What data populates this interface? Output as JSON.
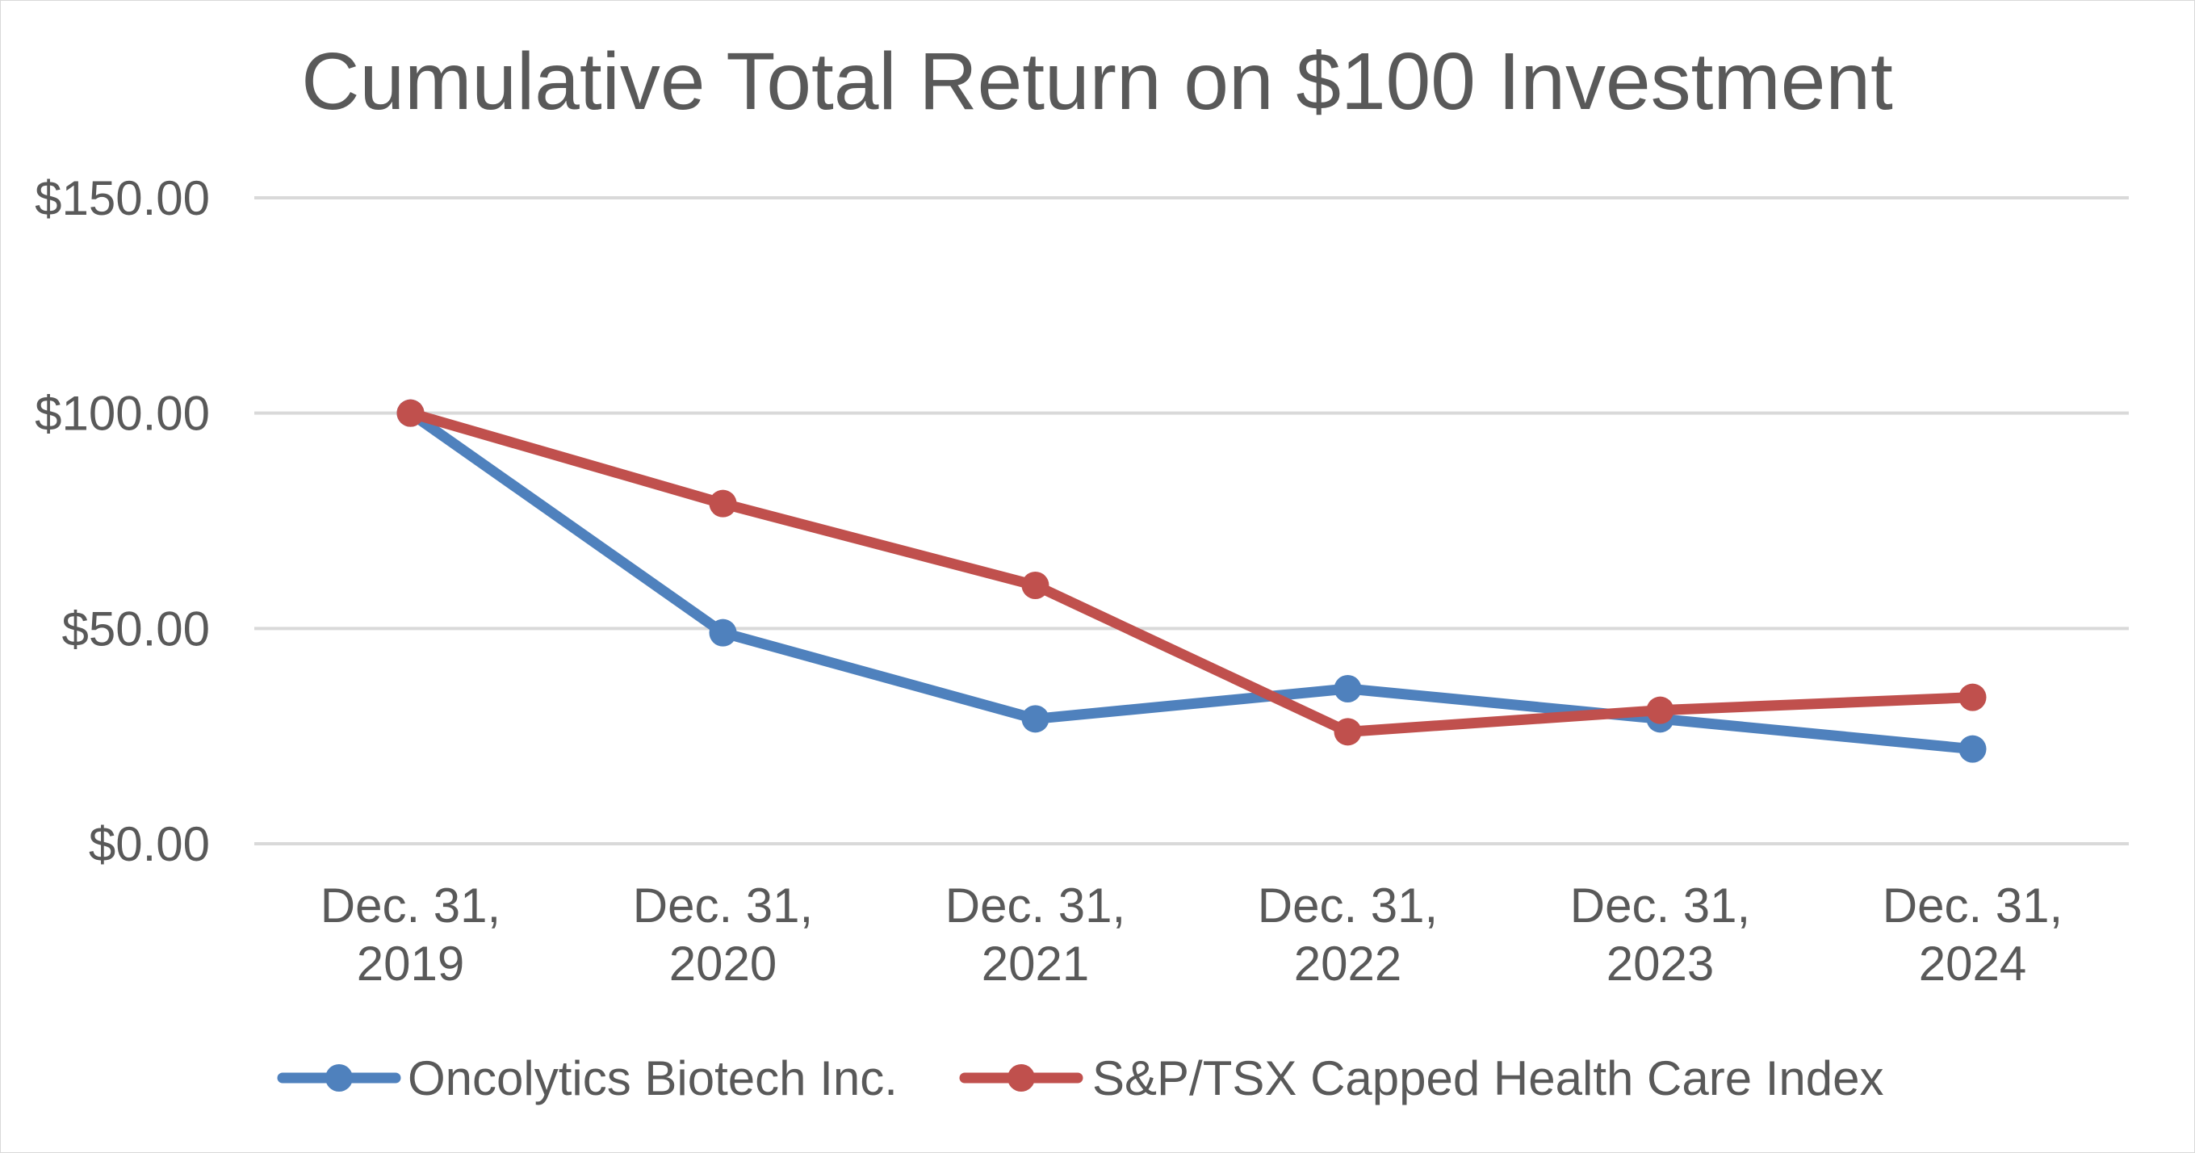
{
  "chart_data": {
    "type": "line",
    "title": "Cumulative Total Return on $100 Investment",
    "xlabel": "",
    "ylabel": "",
    "categories": [
      [
        "Dec. 31,",
        "2019"
      ],
      [
        "Dec. 31,",
        "2020"
      ],
      [
        "Dec. 31,",
        "2021"
      ],
      [
        "Dec. 31,",
        "2022"
      ],
      [
        "Dec. 31,",
        "2023"
      ],
      [
        "Dec. 31,",
        "2024"
      ]
    ],
    "ylim": [
      0,
      150
    ],
    "yticks": [
      0,
      50,
      100,
      150
    ],
    "ytick_labels": [
      "$0.00",
      "$50.00",
      "$100.00",
      "$150.00"
    ],
    "grid": true,
    "legend_position": "bottom",
    "series": [
      {
        "name": "Oncolytics Biotech Inc.",
        "color": "#4f81bd",
        "values": [
          100,
          49,
          29,
          36,
          29,
          22
        ]
      },
      {
        "name": "S&P/TSX Capped Health Care Index",
        "color": "#c0504d",
        "values": [
          100,
          79,
          60,
          26,
          31,
          34
        ]
      }
    ]
  }
}
